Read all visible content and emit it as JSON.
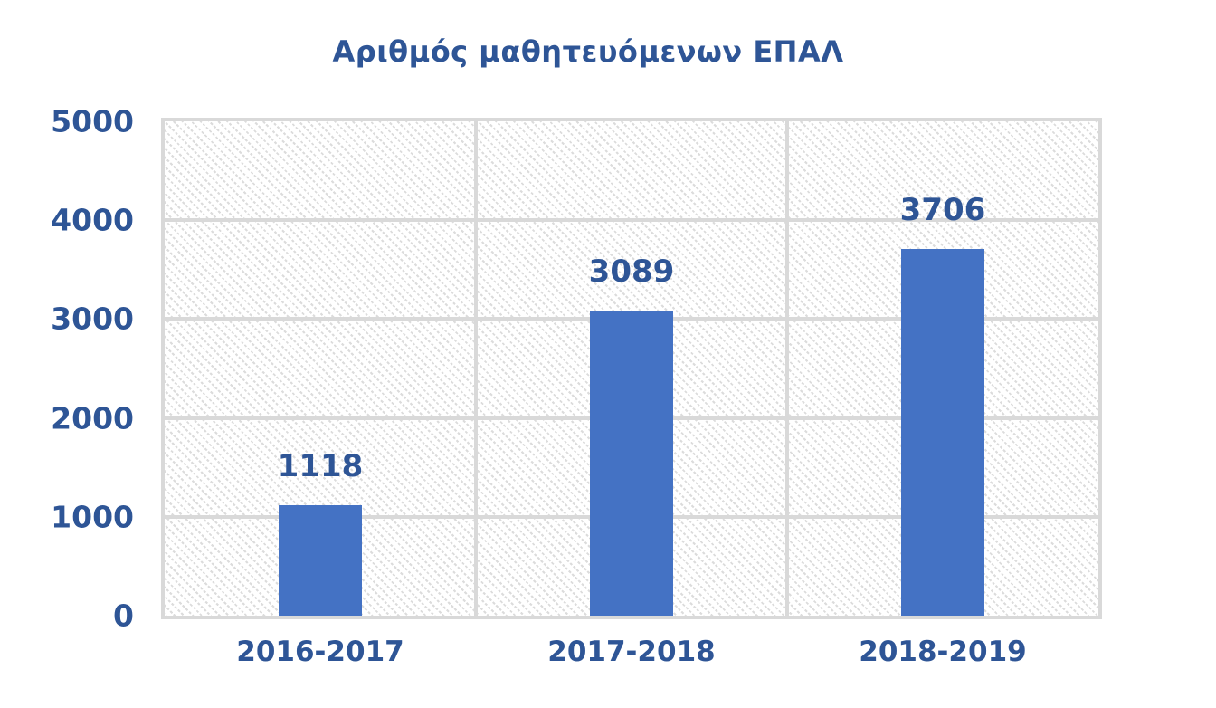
{
  "chart_data": {
    "type": "bar",
    "title": "Αριθμός μαθητευόμενων ΕΠΑΛ",
    "categories": [
      "2016-2017",
      "2017-2018",
      "2018-2019"
    ],
    "values": [
      1118,
      3089,
      3706
    ],
    "data_labels": [
      "1118",
      "3089",
      "3706"
    ],
    "ylim": [
      0,
      5000
    ],
    "yticks": [
      0,
      1000,
      2000,
      3000,
      4000,
      5000
    ],
    "xlabel": "",
    "ylabel": "",
    "legend": "none",
    "grid": {
      "horizontal": true,
      "vertical_category_dividers": true,
      "plot_border": true,
      "plot_fill_pattern": "light-downward-diagonal-hatch"
    },
    "colors": {
      "bar": "#4472C4",
      "text": "#2E5596",
      "gridline": "#D9D9D9",
      "hatch": "#DCDCDC",
      "background": "#FFFFFF"
    }
  }
}
